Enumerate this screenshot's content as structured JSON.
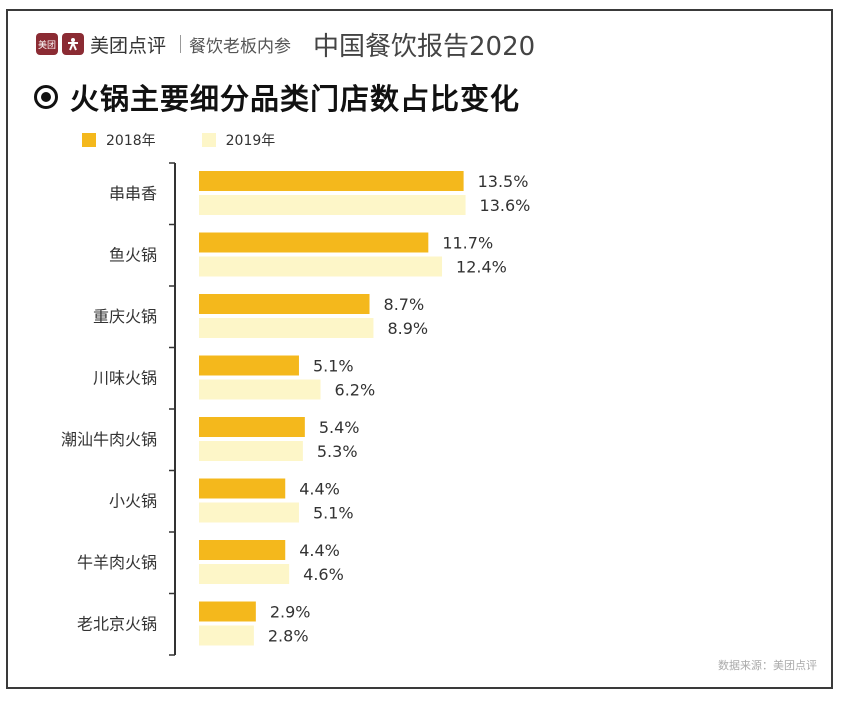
{
  "header": {
    "logo_text": "美团",
    "brand": "美团点评",
    "brand2": "餐饮老板内参",
    "report": "中国餐饮报告2020"
  },
  "title": "火锅主要细分品类门店数占比变化",
  "source": "数据来源：美团点评",
  "colors": {
    "series_2018": "#f4b81c",
    "series_2019": "#fdf6c8",
    "axis": "#333333"
  },
  "chart_data": {
    "type": "bar",
    "orientation": "horizontal",
    "title": "火锅主要细分品类门店数占比变化",
    "xlabel": "",
    "ylabel": "",
    "legend_position": "top-left",
    "grid": false,
    "categories": [
      "串串香",
      "鱼火锅",
      "重庆火锅",
      "川味火锅",
      "潮汕牛肉火锅",
      "小火锅",
      "牛羊肉火锅",
      "老北京火锅"
    ],
    "series": [
      {
        "name": "2018年",
        "values": [
          13.5,
          11.7,
          8.7,
          5.1,
          5.4,
          4.4,
          4.4,
          2.9
        ],
        "labels": [
          "13.5%",
          "11.7%",
          "8.7%",
          "5.1%",
          "5.4%",
          "4.4%",
          "4.4%",
          "2.9%"
        ]
      },
      {
        "name": "2019年",
        "values": [
          13.6,
          12.4,
          8.9,
          6.2,
          5.3,
          5.1,
          4.6,
          2.8
        ],
        "labels": [
          "13.6%",
          "12.4%",
          "8.9%",
          "6.2%",
          "5.3%",
          "5.1%",
          "4.6%",
          "2.8%"
        ]
      }
    ],
    "xlim": [
      0,
      13.6
    ]
  }
}
